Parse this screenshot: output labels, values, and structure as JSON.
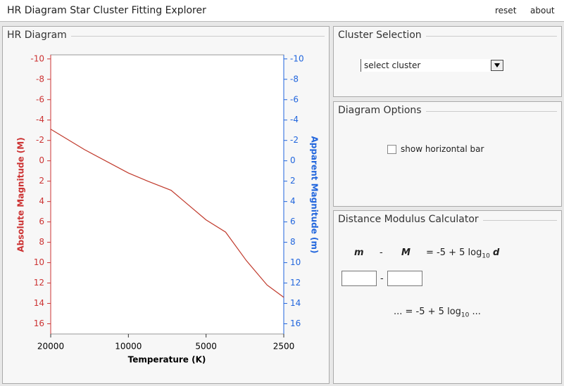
{
  "header": {
    "title": "HR Diagram Star Cluster Fitting Explorer",
    "reset": "reset",
    "about": "about"
  },
  "panels": {
    "hr": "HR Diagram",
    "cluster": "Cluster Selection",
    "options": "Diagram Options",
    "calculator": "Distance Modulus Calculator"
  },
  "cluster_select": {
    "placeholder": "select cluster"
  },
  "diagram_options": {
    "checkbox": "show horizontal bar"
  },
  "calculator": {
    "m": "m",
    "minus": "-",
    "M": "M",
    "rhs": "= -5 + 5 log",
    "rhs_sub": "10",
    "d": "d",
    "input_minus": "-",
    "result_left": "... = -5 + 5 log",
    "result_sub": "10",
    "result_right": "..."
  },
  "chart_data": {
    "type": "line",
    "x_label": "Temperature (K)",
    "y_label": "Absolute Magnitude (M)",
    "y2_label": "Apparent Magnitude (m)",
    "x": [
      20000,
      14800,
      10000,
      8410,
      6830,
      5000,
      4200,
      3490,
      2900,
      2500
    ],
    "values": [
      -3.1,
      -1.1,
      1.2,
      2.0,
      2.9,
      5.8,
      7.0,
      9.8,
      12.2,
      13.4
    ],
    "color": "#c0392b",
    "log_x": true,
    "xlim": [
      20000,
      2500
    ],
    "xticks": [
      20000,
      10000,
      5000,
      2500
    ],
    "ylim": [
      17,
      -10.4
    ],
    "yticks": [
      -10,
      -8,
      -6,
      -4,
      -2,
      0,
      2,
      4,
      6,
      8,
      10,
      12,
      14,
      16
    ],
    "y2lim": [
      17,
      -10.4
    ],
    "y2ticks": [
      -10,
      -8,
      -6,
      -4,
      -2,
      0,
      2,
      4,
      6,
      8,
      10,
      12,
      14,
      16
    ],
    "y_color": "#cc3333",
    "y2_color": "#2266dd"
  }
}
